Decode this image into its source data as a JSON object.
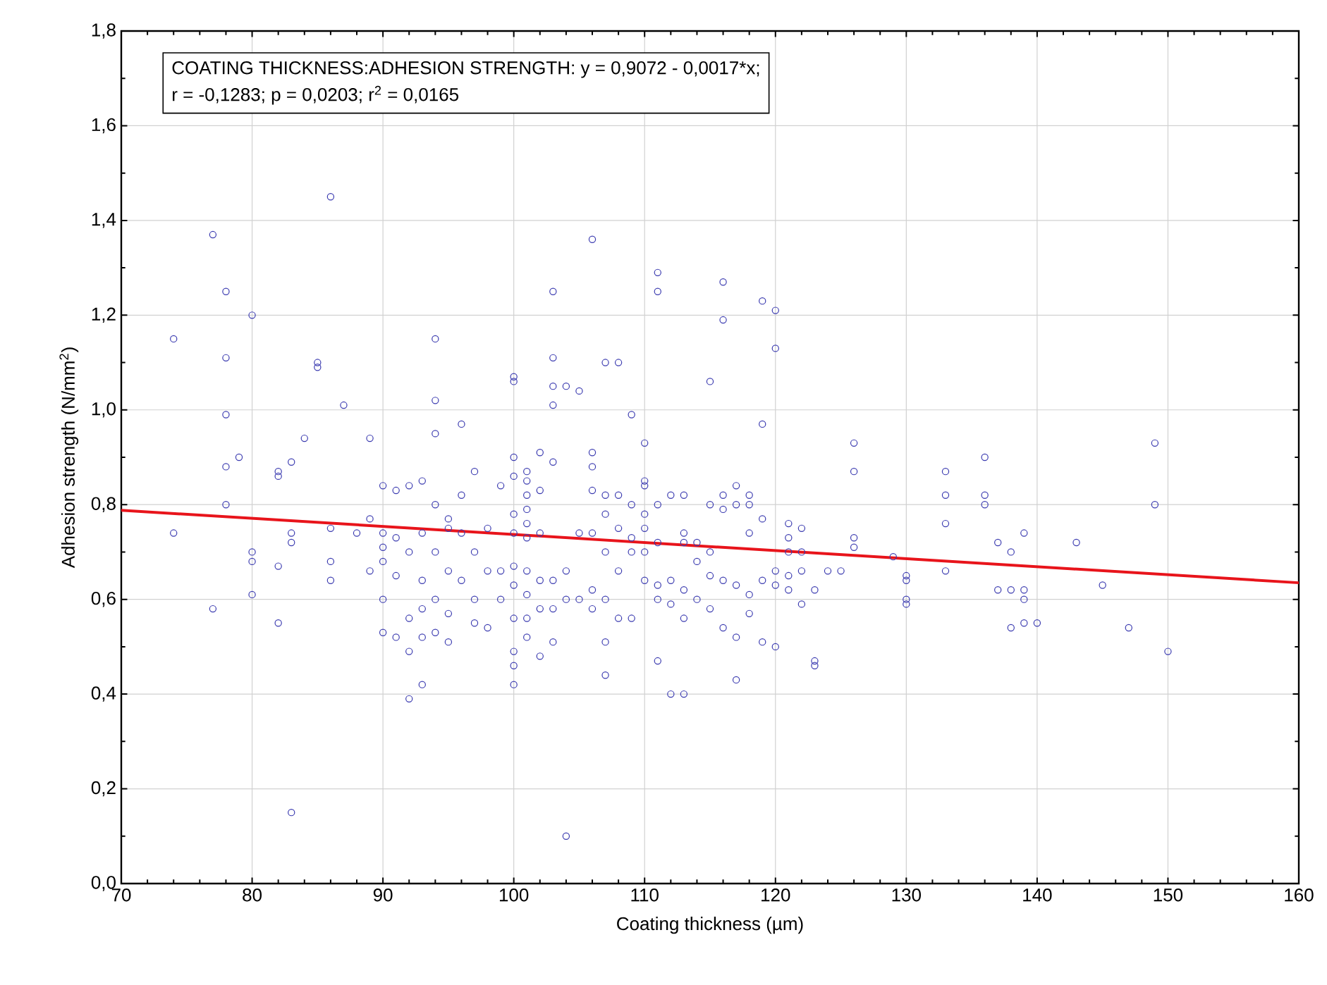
{
  "chart_data": {
    "type": "scatter",
    "xlabel": "Coating thickness (µm)",
    "ylabel": "Adhesion strength (N/mm$^{2}$)",
    "annotations": [
      "COATING THICKNESS:ADHESION STRENGTH:   y = 0,9072 - 0,0017*x;",
      "r = -0,1283; p = 0,0203; r$^{2}$ = 0,0165"
    ],
    "xlim": [
      70,
      160
    ],
    "xticks": [
      70,
      80,
      90,
      100,
      110,
      120,
      130,
      140,
      150,
      160
    ],
    "ylim": [
      0,
      1.8
    ],
    "yticks": [
      {
        "value": 0,
        "label": "0,0"
      },
      {
        "value": 0.2,
        "label": "0,2"
      },
      {
        "value": 0.4,
        "label": "0,4"
      },
      {
        "value": 0.6,
        "label": "0,6"
      },
      {
        "value": 0.8,
        "label": "0,8"
      },
      {
        "value": 1.0,
        "label": "1,0"
      },
      {
        "value": 1.2,
        "label": "1,2"
      },
      {
        "value": 1.4,
        "label": "1,4"
      },
      {
        "value": 1.6,
        "label": "1,6"
      },
      {
        "value": 1.8,
        "label": "1,8"
      }
    ],
    "grid": true,
    "series": [
      {
        "color": "#3b3bb0",
        "marker": "circle",
        "x": [
          74,
          74,
          77,
          77,
          78,
          78,
          78,
          78,
          78,
          79,
          80,
          80,
          80,
          80,
          82,
          82,
          82,
          82,
          83,
          83,
          83,
          83,
          84,
          85,
          85,
          86,
          86,
          86,
          86,
          87,
          88,
          89,
          89,
          89,
          90,
          90,
          90,
          90,
          90,
          90,
          91,
          91,
          91,
          91,
          92,
          92,
          92,
          92,
          92,
          93,
          93,
          93,
          93,
          93,
          93,
          94,
          94,
          94,
          94,
          94,
          94,
          94,
          95,
          95,
          95,
          95,
          95,
          96,
          96,
          96,
          96,
          97,
          97,
          97,
          97,
          98,
          98,
          98,
          99,
          99,
          99,
          100,
          100,
          100,
          100,
          100,
          100,
          100,
          100,
          100,
          100,
          100,
          100,
          101,
          101,
          101,
          101,
          101,
          101,
          101,
          101,
          101,
          101,
          102,
          102,
          102,
          102,
          102,
          102,
          103,
          103,
          103,
          103,
          103,
          103,
          103,
          103,
          104,
          104,
          104,
          104,
          105,
          105,
          105,
          106,
          106,
          106,
          106,
          106,
          106,
          106,
          107,
          107,
          107,
          107,
          107,
          107,
          107,
          108,
          108,
          108,
          108,
          108,
          109,
          109,
          109,
          109,
          109,
          110,
          110,
          110,
          110,
          110,
          110,
          110,
          111,
          111,
          111,
          111,
          111,
          111,
          111,
          112,
          112,
          112,
          112,
          113,
          113,
          113,
          113,
          113,
          113,
          114,
          114,
          114,
          115,
          115,
          115,
          115,
          115,
          116,
          116,
          116,
          116,
          116,
          116,
          117,
          117,
          117,
          117,
          117,
          118,
          118,
          118,
          118,
          118,
          119,
          119,
          119,
          119,
          119,
          120,
          120,
          120,
          120,
          120,
          121,
          121,
          121,
          121,
          121,
          122,
          122,
          122,
          122,
          123,
          123,
          123,
          124,
          125,
          126,
          126,
          126,
          126,
          129,
          130,
          130,
          130,
          130,
          133,
          133,
          133,
          133,
          136,
          136,
          136,
          137,
          137,
          138,
          138,
          138,
          139,
          139,
          139,
          139,
          140,
          143,
          145,
          147,
          149,
          149,
          150
        ],
        "values": [
          1.15,
          0.74,
          1.37,
          0.58,
          1.25,
          1.11,
          0.99,
          0.88,
          0.8,
          0.9,
          1.2,
          0.7,
          0.68,
          0.61,
          0.87,
          0.86,
          0.67,
          0.55,
          0.89,
          0.74,
          0.72,
          0.15,
          0.94,
          1.1,
          1.09,
          1.45,
          0.75,
          0.68,
          0.64,
          1.01,
          0.74,
          0.94,
          0.77,
          0.66,
          0.84,
          0.74,
          0.71,
          0.68,
          0.6,
          0.53,
          0.83,
          0.73,
          0.65,
          0.52,
          0.84,
          0.7,
          0.56,
          0.49,
          0.39,
          0.85,
          0.74,
          0.64,
          0.58,
          0.52,
          0.42,
          1.15,
          1.02,
          0.95,
          0.8,
          0.7,
          0.6,
          0.53,
          0.77,
          0.75,
          0.66,
          0.57,
          0.51,
          0.97,
          0.82,
          0.74,
          0.64,
          0.87,
          0.7,
          0.6,
          0.55,
          0.75,
          0.66,
          0.54,
          0.84,
          0.66,
          0.6,
          1.07,
          1.06,
          0.9,
          0.86,
          0.78,
          0.74,
          0.67,
          0.63,
          0.56,
          0.49,
          0.46,
          0.42,
          0.87,
          0.85,
          0.82,
          0.79,
          0.76,
          0.73,
          0.66,
          0.61,
          0.56,
          0.52,
          0.91,
          0.83,
          0.74,
          0.64,
          0.48,
          0.58,
          1.25,
          1.11,
          1.05,
          1.01,
          0.89,
          0.64,
          0.58,
          0.51,
          1.05,
          0.66,
          0.1,
          0.6,
          1.04,
          0.74,
          0.6,
          1.36,
          0.91,
          0.88,
          0.83,
          0.74,
          0.62,
          0.58,
          1.1,
          0.82,
          0.78,
          0.7,
          0.51,
          0.44,
          0.6,
          1.1,
          0.82,
          0.75,
          0.66,
          0.56,
          0.99,
          0.8,
          0.7,
          0.56,
          0.73,
          0.93,
          0.85,
          0.84,
          0.78,
          0.75,
          0.7,
          0.64,
          1.29,
          1.25,
          0.8,
          0.72,
          0.63,
          0.47,
          0.6,
          0.82,
          0.64,
          0.4,
          0.59,
          0.82,
          0.74,
          0.72,
          0.62,
          0.56,
          0.4,
          0.72,
          0.68,
          0.6,
          1.06,
          0.8,
          0.7,
          0.65,
          0.58,
          1.27,
          1.19,
          0.82,
          0.79,
          0.54,
          0.64,
          0.84,
          0.8,
          0.63,
          0.52,
          0.43,
          0.82,
          0.8,
          0.74,
          0.61,
          0.57,
          1.23,
          0.97,
          0.77,
          0.64,
          0.51,
          1.21,
          1.13,
          0.66,
          0.63,
          0.5,
          0.76,
          0.73,
          0.7,
          0.65,
          0.62,
          0.75,
          0.7,
          0.66,
          0.59,
          0.47,
          0.46,
          0.62,
          0.66,
          0.66,
          0.93,
          0.87,
          0.73,
          0.71,
          0.69,
          0.65,
          0.64,
          0.6,
          0.59,
          0.87,
          0.82,
          0.76,
          0.66,
          0.9,
          0.82,
          0.8,
          0.72,
          0.62,
          0.7,
          0.62,
          0.54,
          0.74,
          0.62,
          0.6,
          0.55,
          0.55,
          0.72,
          0.63,
          0.54,
          0.93,
          0.8,
          0.49
        ]
      },
      {
        "type": "line",
        "marker": "none",
        "color": "#e8141b",
        "x": [
          70,
          160
        ],
        "values": [
          0.788,
          0.635
        ]
      }
    ]
  }
}
